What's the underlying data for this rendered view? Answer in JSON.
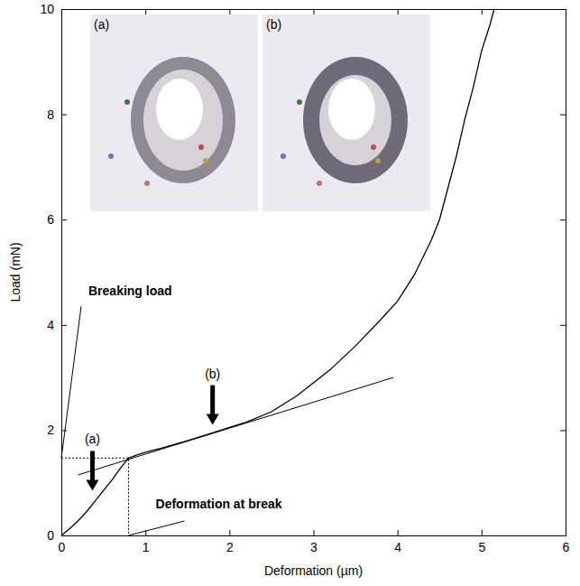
{
  "chart_data": {
    "type": "line",
    "x_label": "Deformation (µm)",
    "y_label": "Load (mN)",
    "x": [
      0,
      0.1,
      0.2,
      0.3,
      0.4,
      0.5,
      0.6,
      0.7,
      0.8,
      0.9,
      1.0,
      1.2,
      1.5,
      1.8,
      2.0,
      2.2,
      2.5,
      2.8,
      3.0,
      3.2,
      3.5,
      3.8,
      4.0,
      4.2,
      4.4,
      4.5,
      4.6,
      4.7,
      4.8,
      4.9,
      5.0,
      5.1,
      5.15
    ],
    "values": [
      0,
      0.13,
      0.28,
      0.45,
      0.65,
      0.85,
      1.05,
      1.27,
      1.47,
      1.53,
      1.58,
      1.66,
      1.8,
      1.95,
      2.05,
      2.15,
      2.35,
      2.65,
      2.9,
      3.15,
      3.6,
      4.1,
      4.45,
      4.95,
      5.6,
      6.0,
      6.6,
      7.2,
      7.9,
      8.5,
      9.2,
      9.7,
      10
    ],
    "color": "#000000",
    "xlim": [
      0,
      6
    ],
    "ylim": [
      0,
      10
    ],
    "xticks": [
      0,
      1,
      2,
      3,
      4,
      5,
      6
    ],
    "yticks": [
      0,
      2,
      4,
      6,
      8,
      10
    ],
    "fit_line": {
      "x": [
        0.2,
        3.95
      ],
      "y": [
        1.15,
        3.0
      ]
    },
    "annotations": [
      {
        "text": "Breaking load",
        "x": 0,
        "y": 1.47
      },
      {
        "text": "Deformation at break",
        "x": 0.8,
        "y": 0
      },
      {
        "text": "(a)",
        "x": 0.37,
        "y": 0.85
      },
      {
        "text": "(b)",
        "x": 1.8,
        "y": 2.1
      }
    ],
    "insets": [
      {
        "label": "(a)"
      },
      {
        "label": "(b)"
      }
    ]
  }
}
